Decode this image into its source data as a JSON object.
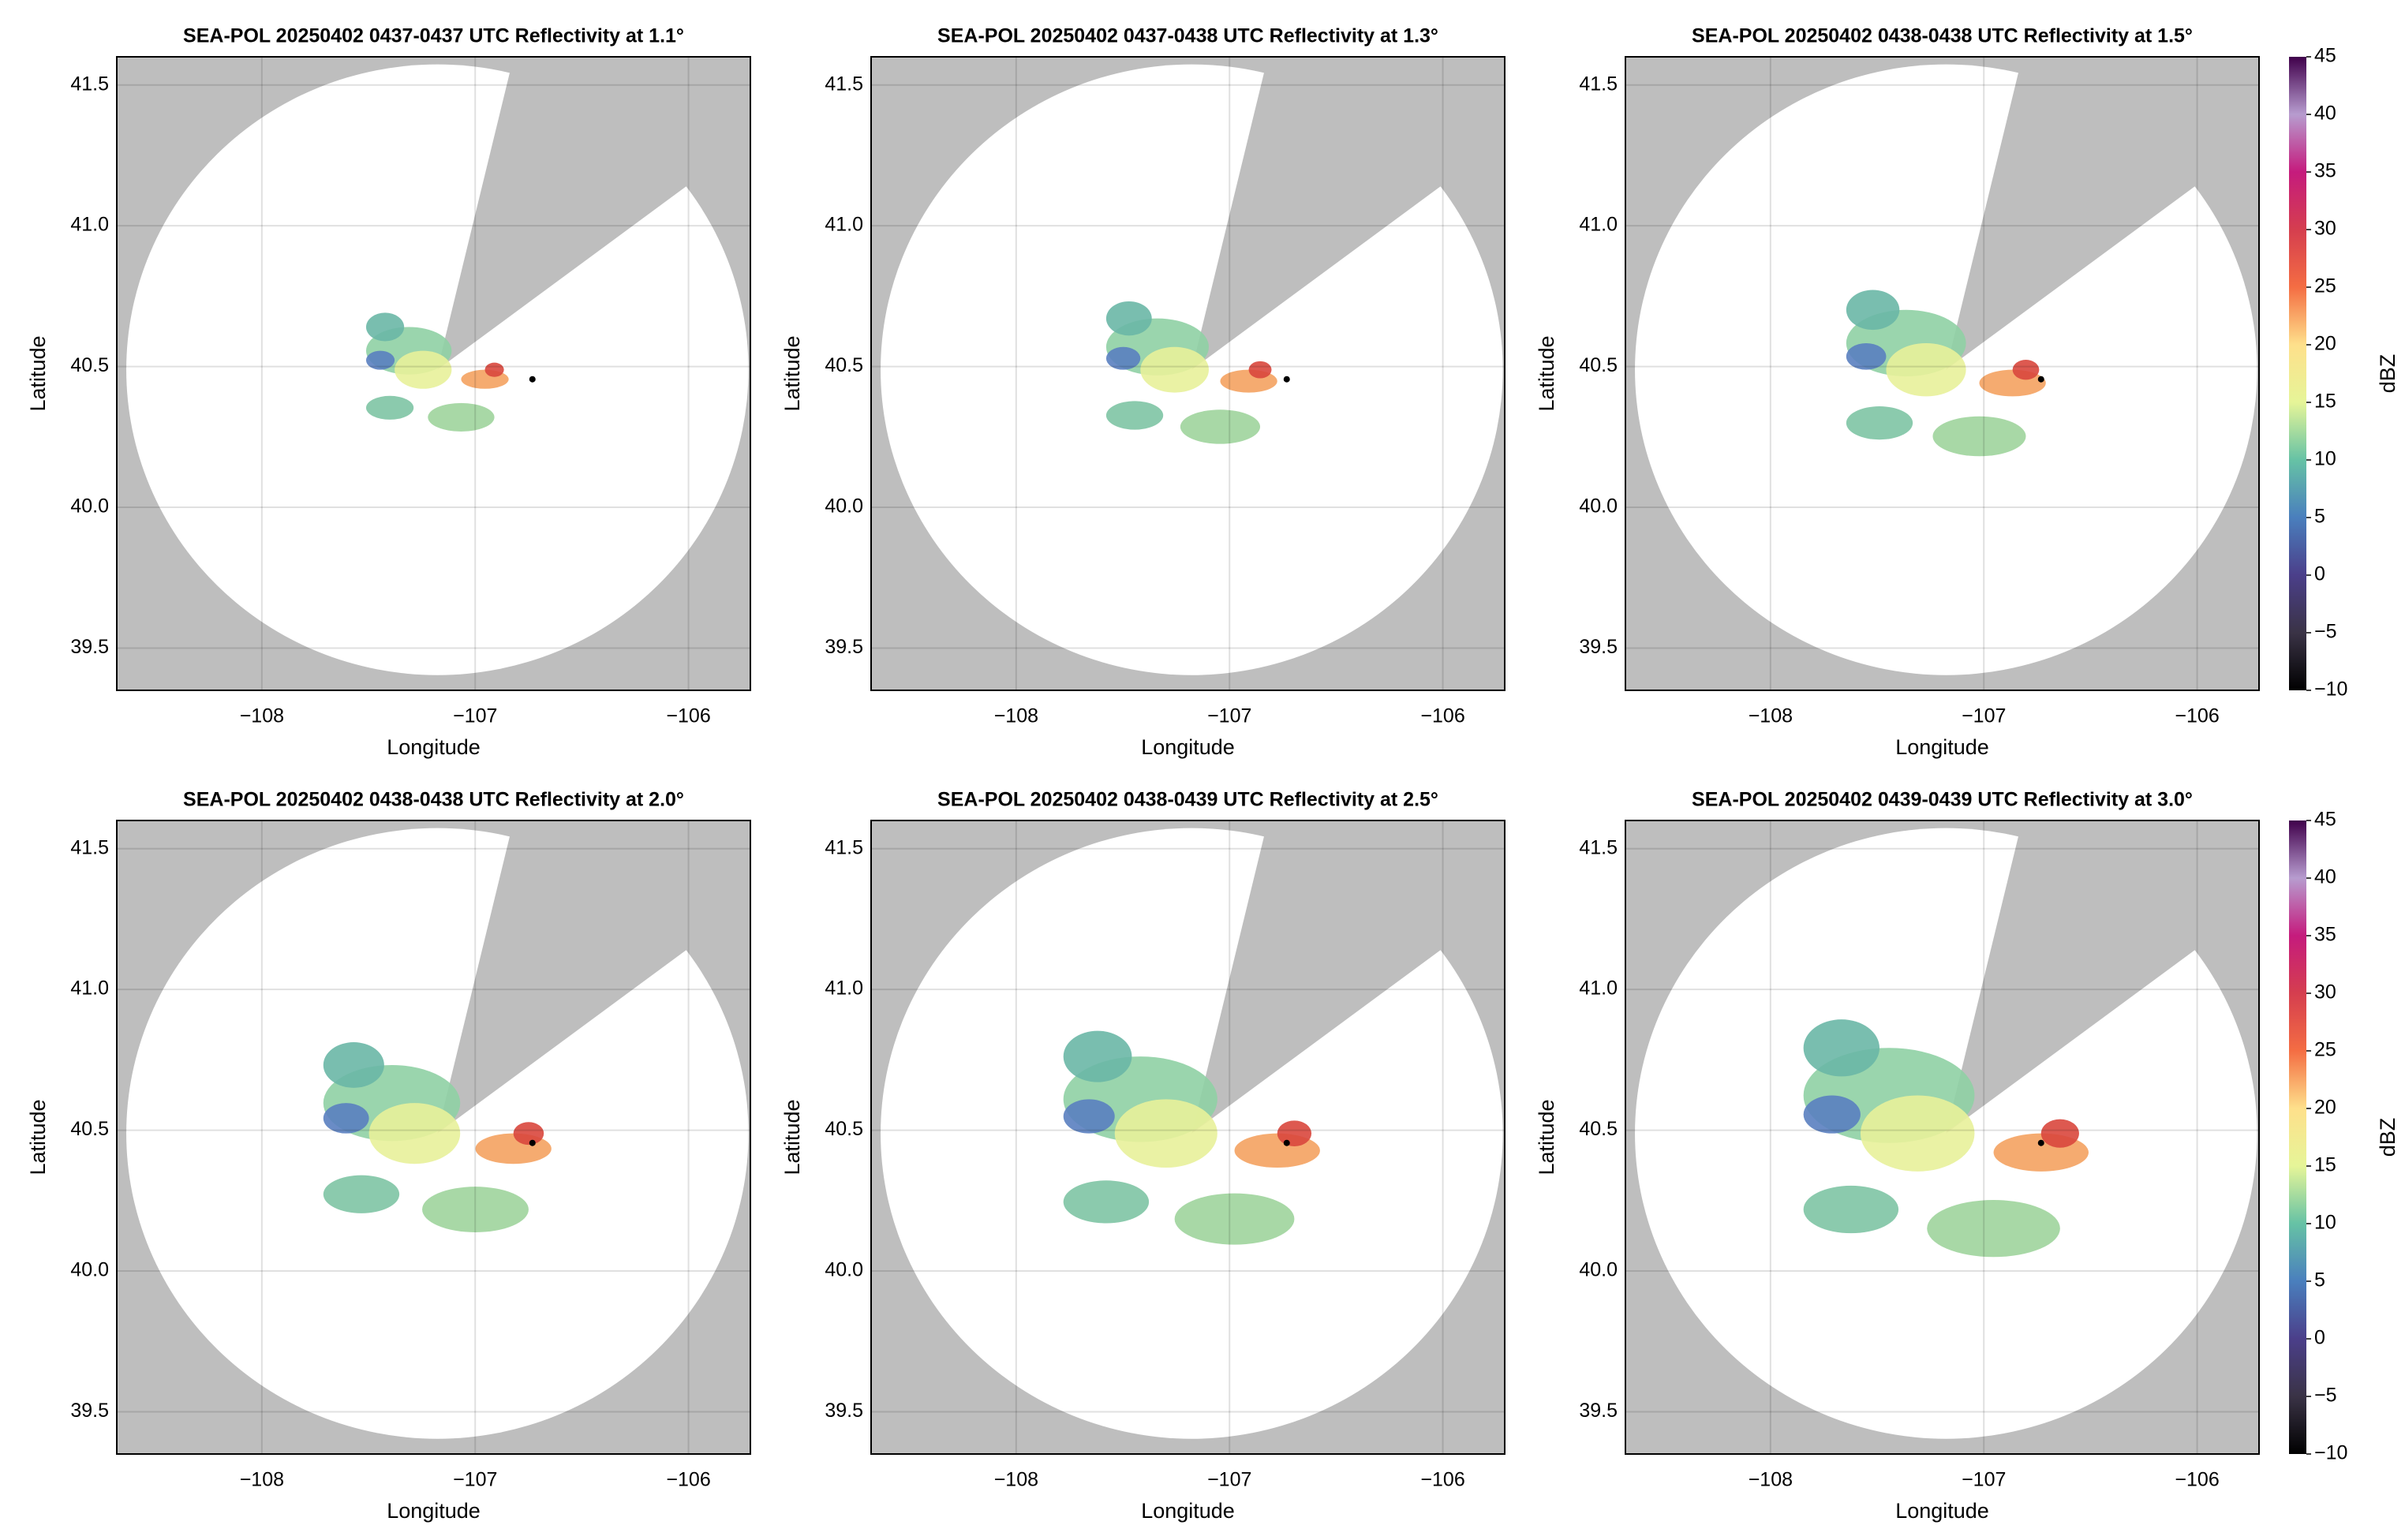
{
  "chart_data": [
    {
      "type": "radar",
      "title": "SEA-POL 20250402 0437-0437 UTC Reflectivity at 1.1°",
      "xlabel": "Longitude",
      "ylabel": "Latitude",
      "xlim": [
        -108.68,
        -105.71
      ],
      "ylim": [
        39.35,
        41.6
      ],
      "xticks": [
        {
          "value": -108,
          "label": "−108"
        },
        {
          "value": -107,
          "label": "−107"
        },
        {
          "value": -106,
          "label": "−106"
        }
      ],
      "yticks": [
        39.5,
        {
          "value": 40,
          "label": "40.0"
        },
        40.5,
        {
          "value": 41,
          "label": "41.0"
        },
        41.5
      ],
      "grid": true
    },
    {
      "type": "radar",
      "title": "SEA-POL 20250402 0437-0438 UTC Reflectivity at 1.3°",
      "xlabel": "Longitude",
      "ylabel": "Latitude",
      "xlim": [
        -108.68,
        -105.71
      ],
      "ylim": [
        39.35,
        41.6
      ],
      "xticks": [
        {
          "value": -108,
          "label": "−108"
        },
        {
          "value": -107,
          "label": "−107"
        },
        {
          "value": -106,
          "label": "−106"
        }
      ],
      "yticks": [
        39.5,
        {
          "value": 40,
          "label": "40.0"
        },
        40.5,
        {
          "value": 41,
          "label": "41.0"
        },
        41.5
      ],
      "grid": true
    },
    {
      "type": "radar",
      "title": "SEA-POL 20250402 0438-0438 UTC Reflectivity at 1.5°",
      "xlabel": "Longitude",
      "ylabel": "Latitude",
      "xlim": [
        -108.68,
        -105.71
      ],
      "ylim": [
        39.35,
        41.6
      ],
      "xticks": [
        {
          "value": -108,
          "label": "−108"
        },
        {
          "value": -107,
          "label": "−107"
        },
        {
          "value": -106,
          "label": "−106"
        }
      ],
      "yticks": [
        39.5,
        {
          "value": 40,
          "label": "40.0"
        },
        40.5,
        {
          "value": 41,
          "label": "41.0"
        },
        41.5
      ],
      "grid": true,
      "colorbar": {
        "label": "dBZ",
        "lim": [
          -10,
          45
        ],
        "ticks": [
          {
            "value": -10,
            "label": "−10"
          },
          {
            "value": -5,
            "label": "−5"
          },
          0,
          5,
          10,
          15,
          20,
          25,
          30,
          35,
          40,
          45
        ],
        "colors": [
          "#000000",
          "#3a3346",
          "#4b3f8a",
          "#4a7fbd",
          "#66c2a5",
          "#e6f598",
          "#fee08b",
          "#f46d43",
          "#d53e4f",
          "#c51b7d",
          "#b79ccf",
          "#40004b"
        ]
      }
    },
    {
      "type": "radar",
      "title": "SEA-POL 20250402 0438-0438 UTC Reflectivity at 2.0°",
      "xlabel": "Longitude",
      "ylabel": "Latitude",
      "xlim": [
        -108.68,
        -105.71
      ],
      "ylim": [
        39.35,
        41.6
      ],
      "xticks": [
        {
          "value": -108,
          "label": "−108"
        },
        {
          "value": -107,
          "label": "−107"
        },
        {
          "value": -106,
          "label": "−106"
        }
      ],
      "yticks": [
        39.5,
        {
          "value": 40,
          "label": "40.0"
        },
        40.5,
        {
          "value": 41,
          "label": "41.0"
        },
        41.5
      ],
      "grid": true
    },
    {
      "type": "radar",
      "title": "SEA-POL 20250402 0438-0439 UTC Reflectivity at 2.5°",
      "xlabel": "Longitude",
      "ylabel": "Latitude",
      "xlim": [
        -108.68,
        -105.71
      ],
      "ylim": [
        39.35,
        41.6
      ],
      "xticks": [
        {
          "value": -108,
          "label": "−108"
        },
        {
          "value": -107,
          "label": "−107"
        },
        {
          "value": -106,
          "label": "−106"
        }
      ],
      "yticks": [
        39.5,
        {
          "value": 40,
          "label": "40.0"
        },
        40.5,
        {
          "value": 41,
          "label": "41.0"
        },
        41.5
      ],
      "grid": true
    },
    {
      "type": "radar",
      "title": "SEA-POL 20250402 0439-0439 UTC Reflectivity at 3.0°",
      "xlabel": "Longitude",
      "ylabel": "Latitude",
      "xlim": [
        -108.68,
        -105.71
      ],
      "ylim": [
        39.35,
        41.6
      ],
      "xticks": [
        {
          "value": -108,
          "label": "−108"
        },
        {
          "value": -107,
          "label": "−107"
        },
        {
          "value": -106,
          "label": "−106"
        }
      ],
      "yticks": [
        39.5,
        {
          "value": 40,
          "label": "40.0"
        },
        40.5,
        {
          "value": 41,
          "label": "41.0"
        },
        41.5
      ],
      "grid": true,
      "colorbar": {
        "label": "dBZ",
        "lim": [
          -10,
          45
        ],
        "ticks": [
          {
            "value": -10,
            "label": "−10"
          },
          {
            "value": -5,
            "label": "−5"
          },
          0,
          5,
          10,
          15,
          20,
          25,
          30,
          35,
          40,
          45
        ],
        "colors": [
          "#000000",
          "#3a3346",
          "#4b3f8a",
          "#4a7fbd",
          "#66c2a5",
          "#e6f598",
          "#fee08b",
          "#f46d43",
          "#d53e4f",
          "#c51b7d",
          "#b79ccf",
          "#40004b"
        ]
      }
    }
  ]
}
